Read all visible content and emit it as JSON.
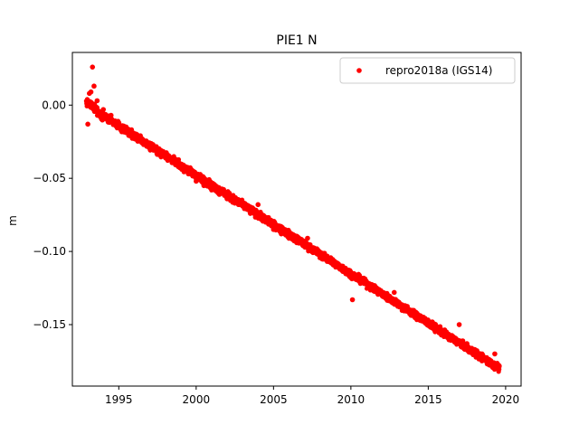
{
  "chart_data": {
    "type": "scatter",
    "title": "PIE1 N",
    "xlabel": "",
    "ylabel": "m",
    "xlim": [
      1992.0,
      2021.0
    ],
    "ylim": [
      -0.192,
      0.036
    ],
    "xticks": [
      {
        "value": 1995,
        "label": "1995"
      },
      {
        "value": 2000,
        "label": "2000"
      },
      {
        "value": 2005,
        "label": "2005"
      },
      {
        "value": 2010,
        "label": "2010"
      },
      {
        "value": 2015,
        "label": "2015"
      },
      {
        "value": 2020,
        "label": "2020"
      }
    ],
    "yticks": [
      {
        "value": 0.0,
        "label": "0.00"
      },
      {
        "value": -0.05,
        "label": "−0.05"
      },
      {
        "value": -0.1,
        "label": "−0.10"
      },
      {
        "value": -0.15,
        "label": "−0.15"
      }
    ],
    "grid": false,
    "legend_position": "top-right",
    "series": [
      {
        "name": "repro2018a (IGS14)",
        "color": "#ff0000",
        "trend": {
          "x_start": 1992.9,
          "x_end": 2019.6,
          "y_start": 0.0,
          "y_end": -0.18
        },
        "points": [
          [
            1993.0,
            -0.013
          ],
          [
            1993.1,
            0.008
          ],
          [
            1993.2,
            0.009
          ],
          [
            1993.3,
            0.026
          ],
          [
            1993.4,
            0.013
          ],
          [
            1993.6,
            0.003
          ],
          [
            1994.0,
            -0.003
          ],
          [
            1994.5,
            -0.007
          ],
          [
            1995.0,
            -0.012
          ],
          [
            1995.5,
            -0.016
          ],
          [
            1996.0,
            -0.021
          ],
          [
            1996.5,
            -0.024
          ],
          [
            1997.0,
            -0.027
          ],
          [
            1997.5,
            -0.031
          ],
          [
            1998.0,
            -0.034
          ],
          [
            1998.5,
            -0.039
          ],
          [
            1999.0,
            -0.043
          ],
          [
            1999.5,
            -0.047
          ],
          [
            2000.0,
            -0.052
          ],
          [
            2000.5,
            -0.055
          ],
          [
            2001.0,
            -0.058
          ],
          [
            2001.5,
            -0.061
          ],
          [
            2002.0,
            -0.064
          ],
          [
            2002.5,
            -0.067
          ],
          [
            2003.0,
            -0.069
          ],
          [
            2003.5,
            -0.074
          ],
          [
            2004.0,
            -0.068
          ],
          [
            2004.2,
            -0.078
          ],
          [
            2004.5,
            -0.08
          ],
          [
            2005.0,
            -0.085
          ],
          [
            2005.5,
            -0.088
          ],
          [
            2006.0,
            -0.091
          ],
          [
            2006.5,
            -0.094
          ],
          [
            2007.2,
            -0.091
          ],
          [
            2007.5,
            -0.099
          ],
          [
            2008.0,
            -0.103
          ],
          [
            2008.5,
            -0.106
          ],
          [
            2009.0,
            -0.109
          ],
          [
            2009.5,
            -0.112
          ],
          [
            2010.0,
            -0.116
          ],
          [
            2010.1,
            -0.133
          ],
          [
            2010.5,
            -0.119
          ],
          [
            2011.0,
            -0.122
          ],
          [
            2011.5,
            -0.125
          ],
          [
            2012.0,
            -0.128
          ],
          [
            2012.5,
            -0.131
          ],
          [
            2012.8,
            -0.128
          ],
          [
            2013.0,
            -0.134
          ],
          [
            2013.5,
            -0.137
          ],
          [
            2014.0,
            -0.141
          ],
          [
            2014.5,
            -0.144
          ],
          [
            2015.0,
            -0.148
          ],
          [
            2015.5,
            -0.151
          ],
          [
            2016.0,
            -0.155
          ],
          [
            2016.5,
            -0.158
          ],
          [
            2017.0,
            -0.15
          ],
          [
            2017.5,
            -0.163
          ],
          [
            2018.0,
            -0.167
          ],
          [
            2018.5,
            -0.171
          ],
          [
            2019.0,
            -0.175
          ],
          [
            2019.3,
            -0.17
          ],
          [
            2019.5,
            -0.179
          ]
        ]
      }
    ]
  }
}
